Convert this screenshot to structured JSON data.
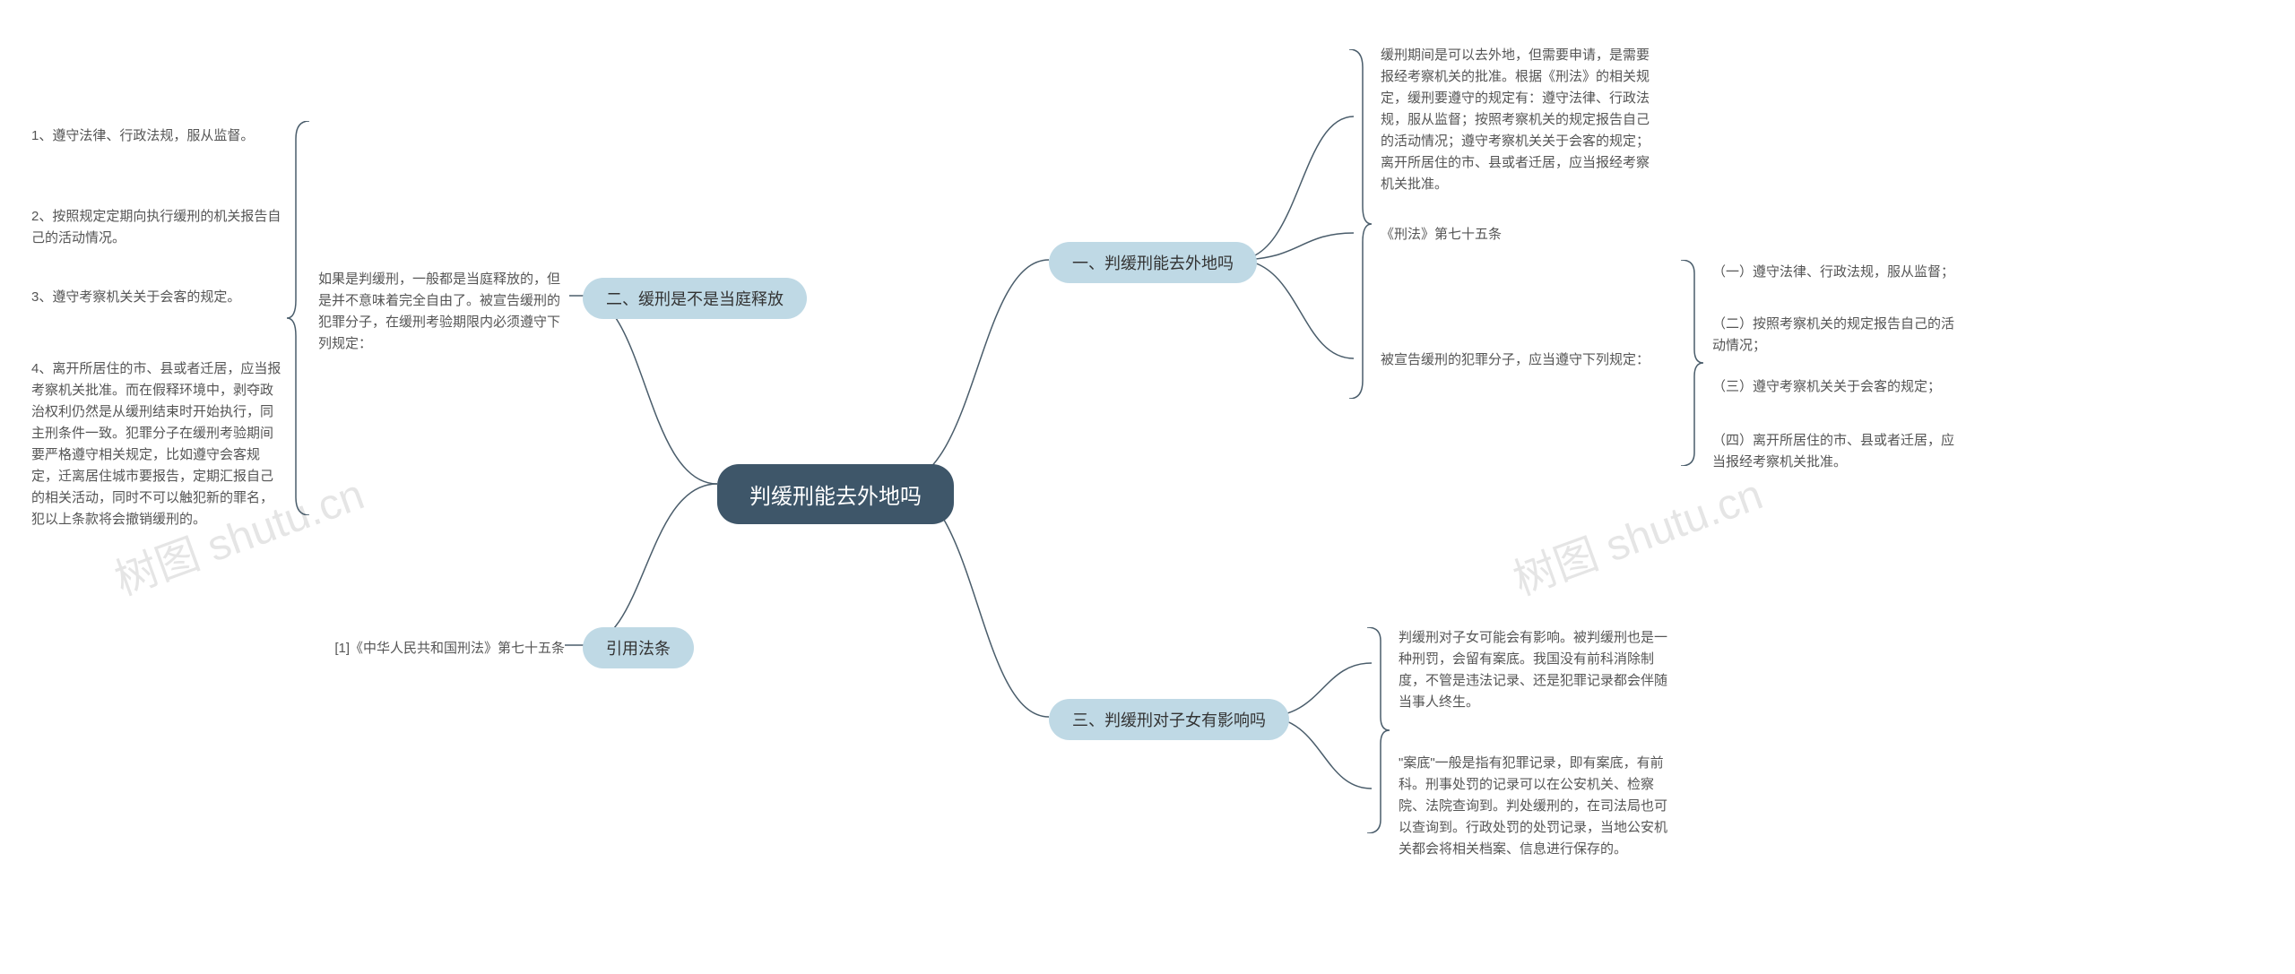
{
  "colors": {
    "root_bg": "#3e5669",
    "root_text": "#ffffff",
    "branch_bg": "#bfd9e5",
    "branch_text": "#333333",
    "leaf_text": "#555555",
    "connector": "#4a5d6b",
    "background": "#ffffff",
    "watermark": "rgba(0,0,0,0.10)"
  },
  "typography": {
    "root_fontsize": 24,
    "branch_fontsize": 18,
    "leaf_fontsize": 15,
    "watermark_fontsize": 48
  },
  "root": {
    "label": "判缓刑能去外地吗"
  },
  "branches": {
    "b1": {
      "label": "一、判缓刑能去外地吗",
      "children": {
        "c1": "缓刑期间是可以去外地，但需要申请，是需要报经考察机关的批准。根据《刑法》的相关规定，缓刑要遵守的规定有：遵守法律、行政法规，服从监督；按照考察机关的规定报告自己的活动情况；遵守考察机关关于会客的规定；离开所居住的市、县或者迁居，应当报经考察机关批准。",
        "c2": "《刑法》第七十五条",
        "c3": {
          "label": "被宣告缓刑的犯罪分子，应当遵守下列规定：",
          "items": {
            "i1": "（一）遵守法律、行政法规，服从监督；",
            "i2": "（二）按照考察机关的规定报告自己的活动情况；",
            "i3": "（三）遵守考察机关关于会客的规定；",
            "i4": "（四）离开所居住的市、县或者迁居，应当报经考察机关批准。"
          }
        }
      }
    },
    "b2": {
      "label": "二、缓刑是不是当庭释放",
      "intro": "如果是判缓刑，一般都是当庭释放的，但是并不意味着完全自由了。被宣告缓刑的犯罪分子，在缓刑考验期限内必须遵守下列规定：",
      "items": {
        "d1": "1、遵守法律、行政法规，服从监督。",
        "d2": "2、按照规定定期向执行缓刑的机关报告自己的活动情况。",
        "d3": "3、遵守考察机关关于会客的规定。",
        "d4": "4、离开所居住的市、县或者迁居，应当报考察机关批准。而在假释环境中，剥夺政治权利仍然是从缓刑结束时开始执行，同主刑条件一致。犯罪分子在缓刑考验期间要严格遵守相关规定，比如遵守会客规定，迁离居住城市要报告，定期汇报自己的相关活动，同时不可以触犯新的罪名，犯以上条款将会撤销缓刑的。"
      }
    },
    "b3": {
      "label": "三、判缓刑对子女有影响吗",
      "items": {
        "e1": "判缓刑对子女可能会有影响。被判缓刑也是一种刑罚，会留有案底。我国没有前科消除制度，不管是违法记录、还是犯罪记录都会伴随当事人终生。",
        "e2": "\"案底\"一般是指有犯罪记录，即有案底，有前科。刑事处罚的记录可以在公安机关、检察院、法院查询到。判处缓刑的，在司法局也可以查询到。行政处罚的处罚记录，当地公安机关都会将相关档案、信息进行保存的。"
      }
    },
    "b4": {
      "label": "引用法条",
      "ref": "[1]《中华人民共和国刑法》第七十五条"
    }
  },
  "watermarks": {
    "w1": "树图 shutu.cn",
    "w2": "树图 shutu.cn"
  }
}
